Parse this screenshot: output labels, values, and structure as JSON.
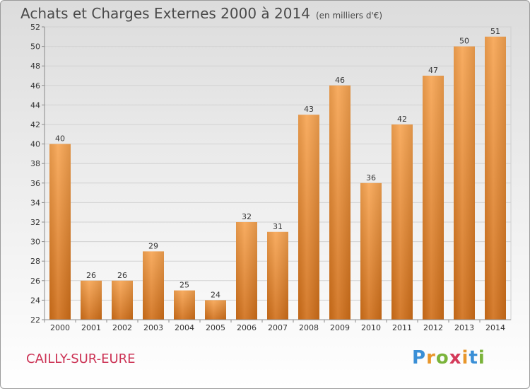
{
  "chart_data": {
    "type": "bar",
    "title": "Achats et Charges Externes 2000 à 2014",
    "unit": "(en milliers d'€)",
    "subtitle": "CAILLY-SUR-EURE",
    "categories": [
      "2000",
      "2001",
      "2002",
      "2003",
      "2004",
      "2005",
      "2006",
      "2007",
      "2008",
      "2009",
      "2010",
      "2011",
      "2012",
      "2013",
      "2014"
    ],
    "values": [
      40,
      26,
      26,
      29,
      25,
      24,
      32,
      31,
      43,
      46,
      36,
      42,
      47,
      50,
      51
    ],
    "ylim": [
      22,
      52
    ],
    "yticks": [
      22,
      24,
      26,
      28,
      30,
      32,
      34,
      36,
      38,
      40,
      42,
      44,
      46,
      48,
      50,
      52
    ],
    "grid": true,
    "bar_color": "#f0902e",
    "title_color": "#4a4a4a",
    "subtitle_color": "#cc3355"
  },
  "logo": {
    "letters": [
      "P",
      "r",
      "o",
      "x",
      "i",
      "t",
      "i"
    ],
    "colors": [
      "#3a8fd6",
      "#e8962b",
      "#7ab33a",
      "#d43a5a",
      "#e8962b",
      "#3a8fd6",
      "#7ab33a"
    ]
  }
}
